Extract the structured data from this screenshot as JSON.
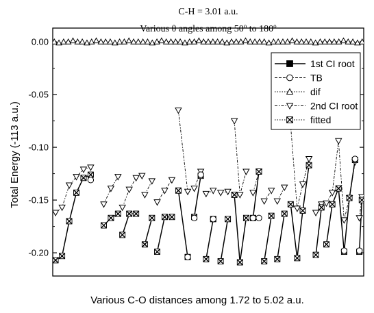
{
  "chart_data": {
    "type": "line",
    "title": "C-H = 3.01 a.u.",
    "subtitle": {
      "prefix": "Various ",
      "theta": "θ",
      "middle": " angles among 50",
      "deg1": "o",
      "to": " to 180",
      "deg2": "o"
    },
    "xlabel": "Various C-O distances among 1.72 to 5.02 a.u.",
    "ylabel": "Total Energy (-113 a.u.)",
    "ylim": [
      -0.222,
      0.013
    ],
    "xlim": [
      0,
      100
    ],
    "yticks": [
      0.0,
      -0.05,
      -0.1,
      -0.15,
      -0.2
    ],
    "ytick_labels": [
      "0.00",
      "-0.05",
      "-0.10",
      "-0.15",
      "-0.20"
    ],
    "legend_position": "top-right",
    "legend": [
      {
        "name": "1st CI root",
        "marker": "square-filled",
        "dash": "solid"
      },
      {
        "name": "TB",
        "marker": "circle",
        "dash": "dash"
      },
      {
        "name": "dif",
        "marker": "triangle-up",
        "dash": "dot"
      },
      {
        "name": "2nd CI root",
        "marker": "triangle-down",
        "dash": "dashdot"
      },
      {
        "name": "fitted",
        "marker": "x-box",
        "dash": "dot"
      }
    ],
    "groups": [
      {
        "x": [
          0.9,
          3.0,
          5.3,
          7.6,
          9.9,
          12.2
        ],
        "ci1": [
          -0.207,
          -0.203,
          -0.17,
          -0.143,
          -0.129,
          -0.126
        ],
        "ci2": [
          -0.162,
          -0.157,
          -0.136,
          -0.128,
          -0.121,
          -0.119
        ],
        "tb": [
          null,
          null,
          null,
          null,
          null,
          -0.131
        ]
      },
      {
        "x": [
          16.4,
          18.7,
          21.0
        ],
        "ci1": [
          -0.174,
          -0.167,
          -0.163
        ],
        "ci2": [
          -0.154,
          -0.139,
          -0.128
        ]
      },
      {
        "x": [
          22.4,
          24.6,
          26.8,
          28.7
        ],
        "ci1": [
          -0.183,
          -0.163,
          -0.163,
          null
        ],
        "ci2": [
          -0.157,
          -0.14,
          -0.129,
          -0.127
        ]
      },
      {
        "x": [
          29.6,
          31.9
        ],
        "ci1": [
          -0.192,
          -0.167
        ],
        "ci2": [
          -0.145,
          -0.132
        ]
      },
      {
        "x": [
          33.6,
          36.0,
          38.3
        ],
        "ci1": [
          -0.199,
          -0.166,
          -0.166
        ],
        "ci2": [
          -0.152,
          -0.141,
          -0.131
        ]
      },
      {
        "x": [
          40.4,
          43.4
        ],
        "ci1": [
          -0.141,
          -0.204
        ],
        "ci2": [
          -0.065,
          -0.142
        ]
      },
      {
        "x": [
          45.5,
          47.6
        ],
        "ci1": [
          -0.166,
          -0.127
        ],
        "ci2": [
          -0.139,
          -0.123
        ]
      },
      {
        "x": [
          49.3,
          51.6
        ],
        "ci1": [
          -0.206,
          -0.168
        ],
        "ci2": [
          -0.144,
          -0.141
        ]
      },
      {
        "x": [
          54.0,
          56.3
        ],
        "ci1": [
          -0.208,
          -0.168
        ],
        "ci2": [
          -0.143,
          -0.142
        ]
      },
      {
        "x": [
          58.4,
          60.2,
          62.2
        ],
        "ci1": [
          -0.145,
          -0.209,
          -0.167
        ],
        "ci2": [
          -0.075,
          -0.145,
          -0.123
        ]
      },
      {
        "x": [
          64.4,
          66.3
        ],
        "ci1": [
          -0.167,
          -0.123
        ],
        "ci2": [
          -0.143,
          -0.123
        ]
      },
      {
        "x": [
          68.0,
          70.3
        ],
        "ci1": [
          -0.208,
          -0.165
        ],
        "ci2": [
          -0.151,
          -0.141
        ]
      },
      {
        "x": [
          72.2,
          74.5
        ],
        "ci1": [
          -0.206,
          -0.163
        ],
        "ci2": [
          -0.151,
          -0.138
        ]
      },
      {
        "x": [
          76.5,
          78.6,
          80.4,
          82.4
        ],
        "ci1": [
          -0.154,
          -0.205,
          -0.16,
          -0.117
        ],
        "ci2": [
          -0.079,
          -0.158,
          -0.135,
          -0.111
        ]
      },
      {
        "x": [
          84.6,
          86.4
        ],
        "ci1": [
          -0.202,
          -0.157
        ],
        "ci2": [
          -0.162,
          -0.154
        ]
      },
      {
        "x": [
          88.0,
          89.9,
          91.9,
          93.7,
          95.4,
          97.2
        ],
        "ci1": [
          -0.192,
          -0.154,
          -0.139,
          -0.199,
          -0.148,
          -0.112
        ],
        "ci2": [
          -0.153,
          -0.143,
          -0.094,
          -0.169,
          -0.148,
          -0.114
        ]
      },
      {
        "x": [
          98.6,
          99.4
        ],
        "ci1": [
          -0.199,
          -0.15
        ],
        "ci2": [
          -0.167,
          -0.147
        ]
      }
    ],
    "dif": {
      "x": [
        0.5,
        2.0,
        3.5,
        5.0,
        6.5,
        8.0,
        9.5,
        11.0,
        12.5,
        14.0,
        15.5,
        17.0,
        18.5,
        20.0,
        21.5,
        23.0,
        24.5,
        26.0,
        27.5,
        29.0,
        30.5,
        32.0,
        33.5,
        35.0,
        36.5,
        38.0,
        39.5,
        41.0,
        42.5,
        44.0,
        45.5,
        47.0,
        48.5,
        50.0,
        51.5,
        53.0,
        54.5,
        56.0,
        57.5,
        59.0,
        60.5,
        62.0,
        63.5,
        65.0,
        66.5,
        68.0,
        69.5,
        71.0,
        72.5,
        74.0,
        75.5,
        77.0,
        78.5,
        80.0,
        81.5,
        83.0,
        84.5,
        86.0,
        87.5,
        89.0,
        90.5,
        92.0,
        93.5,
        95.0,
        96.5,
        98.0,
        99.5
      ],
      "y": [
        0.0,
        -0.001,
        0.0,
        0.0,
        0.001,
        0.0,
        0.0,
        -0.001,
        0.0,
        0.001,
        0.0,
        0.0,
        0.0,
        -0.001,
        0.0,
        0.0,
        0.001,
        0.0,
        0.0,
        0.0,
        0.0,
        -0.001,
        0.0,
        0.001,
        0.0,
        0.0,
        0.0,
        0.0,
        -0.001,
        0.0,
        0.0,
        0.001,
        0.0,
        0.0,
        0.0,
        0.0,
        0.0,
        -0.001,
        0.0,
        0.0,
        0.0,
        0.001,
        0.0,
        0.0,
        0.0,
        0.0,
        -0.001,
        0.0,
        0.0,
        0.0,
        0.0,
        0.001,
        0.0,
        0.0,
        0.0,
        0.0,
        -0.001,
        0.0,
        0.0,
        0.0,
        0.0,
        0.0,
        0.001,
        0.0,
        0.0,
        -0.001,
        0.0
      ]
    }
  }
}
